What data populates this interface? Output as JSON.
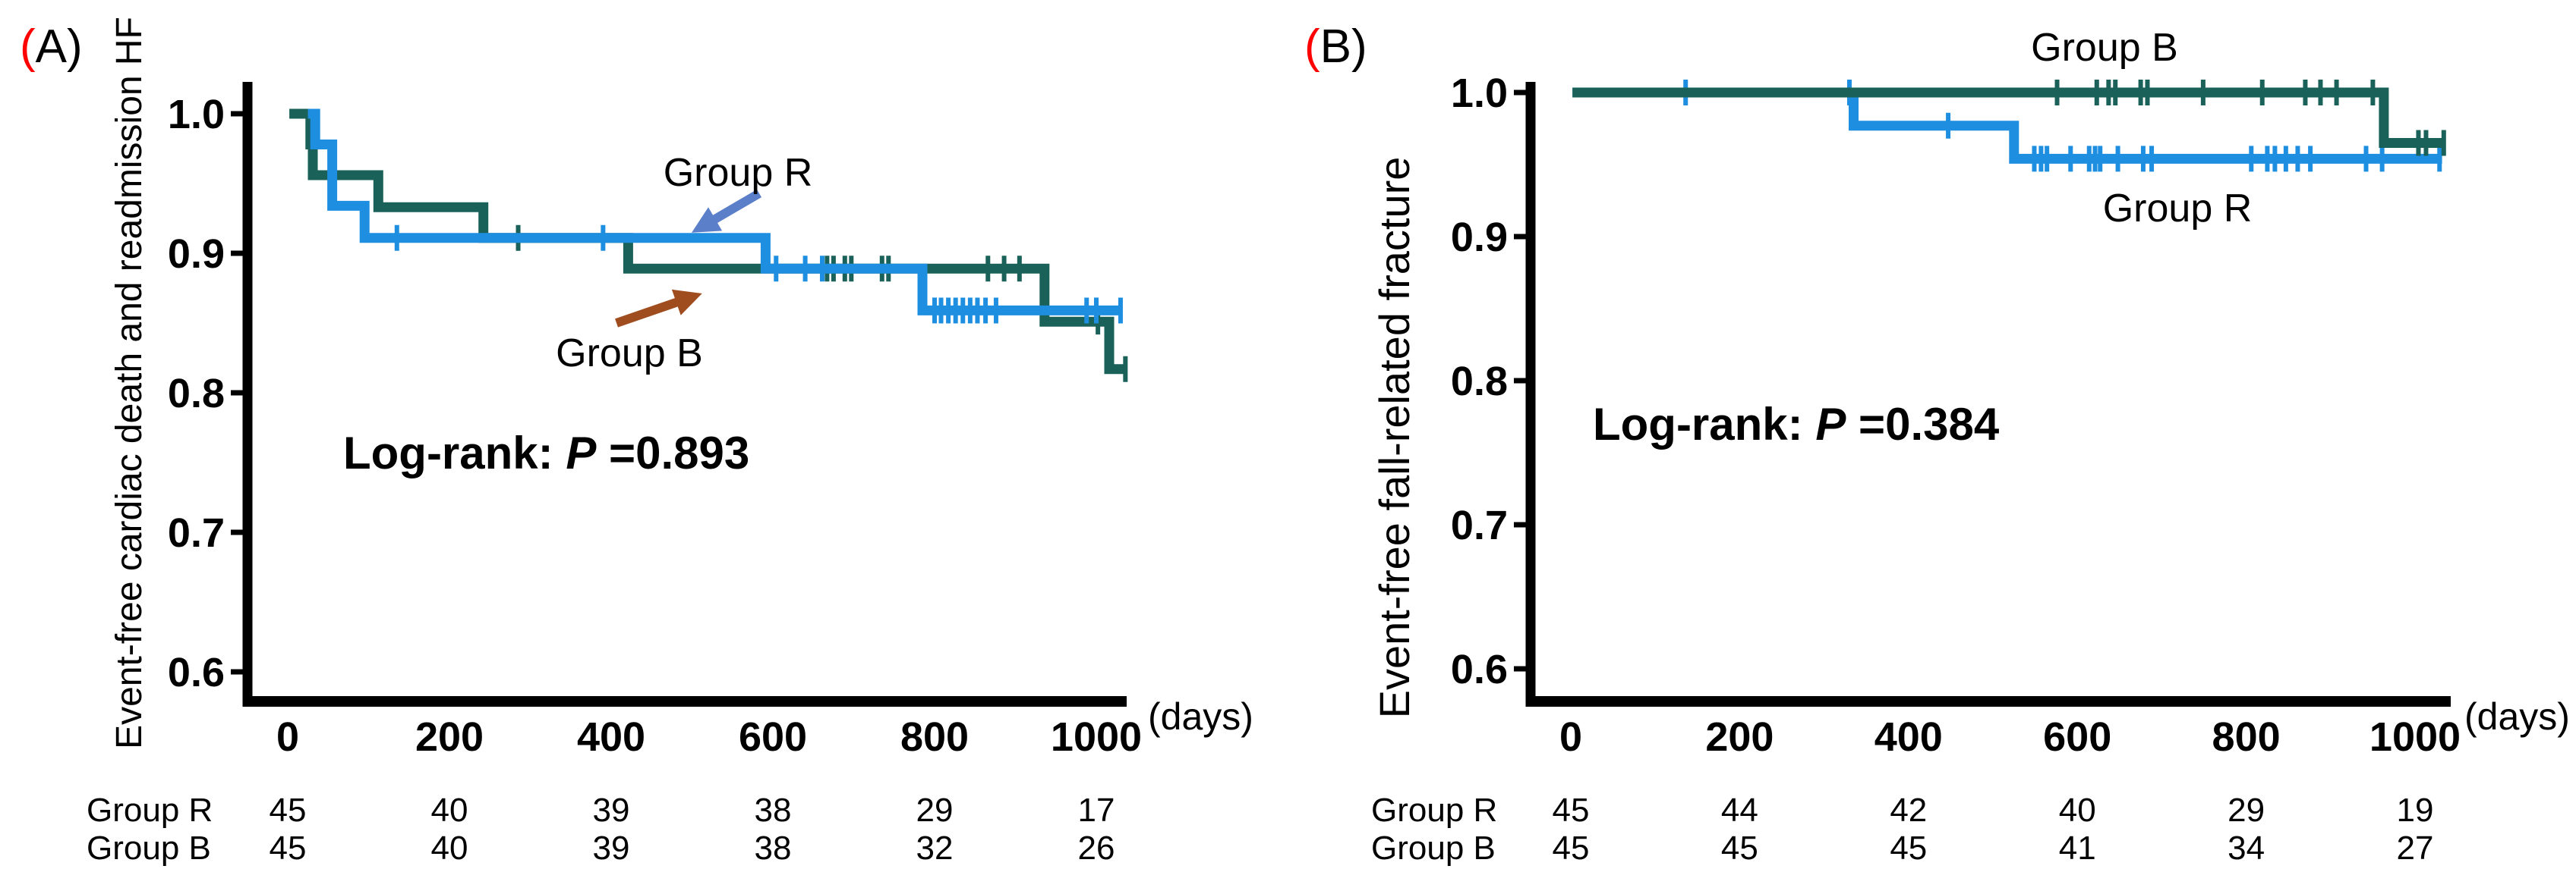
{
  "figure": {
    "background": "#FFFFFF",
    "colors": {
      "group_r": "#1E8FE0",
      "group_b": "#1A6159",
      "arrow_r": "#5C7FC9",
      "arrow_b": "#9F4D1E",
      "accent_red": "#FF0000",
      "axis": "#000000",
      "text": "#000000"
    }
  },
  "chart_data": [
    {
      "type": "line",
      "subtype": "kaplan-meier-step",
      "panel_label": {
        "open": "(",
        "rest": "A)"
      },
      "title": "",
      "ylabel": "Event-free cardiac death and readmission HF",
      "xlabel": "",
      "x_unit_label": "(days)",
      "stats": {
        "prefix": "Log-rank: ",
        "p_symbol": "P",
        "p_value": " =0.893"
      },
      "xlim": [
        0,
        1050
      ],
      "ylim": [
        0.6,
        1.0
      ],
      "grid": false,
      "legend_position": "annotated-on-plot",
      "y_ticks": [
        "1.0",
        "0.9",
        "0.8",
        "0.7",
        "0.6"
      ],
      "x_ticks": [
        "0",
        "200",
        "400",
        "600",
        "800",
        "1000"
      ],
      "series": [
        {
          "name": "Group R",
          "annotation": "Group R",
          "color_key": "group_r",
          "steps": [
            [
              25,
              1.0
            ],
            [
              34,
              0.978
            ],
            [
              55,
              0.934
            ],
            [
              95,
              0.911
            ],
            [
              591,
              0.889
            ],
            [
              785,
              0.859
            ]
          ],
          "end_day": 1032,
          "censor_marks": [
            [
              135,
              0.911
            ],
            [
              390,
              0.911
            ],
            [
              604,
              0.889
            ],
            [
              640,
              0.889
            ],
            [
              661,
              0.889
            ],
            [
              800,
              0.859
            ],
            [
              808,
              0.859
            ],
            [
              817,
              0.859
            ],
            [
              826,
              0.859
            ],
            [
              835,
              0.859
            ],
            [
              844,
              0.859
            ],
            [
              853,
              0.859
            ],
            [
              863,
              0.859
            ],
            [
              876,
              0.859
            ],
            [
              988,
              0.859
            ],
            [
              1000,
              0.859
            ],
            [
              1030,
              0.859
            ]
          ]
        },
        {
          "name": "Group B",
          "annotation": "Group B",
          "color_key": "group_b",
          "steps": [
            [
              2,
              1.0
            ],
            [
              28,
              0.978
            ],
            [
              31,
              0.956
            ],
            [
              112,
              0.933
            ],
            [
              242,
              0.911
            ],
            [
              421,
              0.889
            ],
            [
              936,
              0.851
            ],
            [
              1016,
              0.817
            ]
          ],
          "end_day": 1038,
          "censor_marks": [
            [
              285,
              0.911
            ],
            [
              667,
              0.889
            ],
            [
              675,
              0.889
            ],
            [
              689,
              0.889
            ],
            [
              697,
              0.889
            ],
            [
              735,
              0.889
            ],
            [
              743,
              0.889
            ],
            [
              866,
              0.889
            ],
            [
              886,
              0.889
            ],
            [
              905,
              0.889
            ],
            [
              1002,
              0.851
            ],
            [
              1036,
              0.817
            ]
          ]
        }
      ],
      "risk_table": {
        "at_days": [
          "0",
          "200",
          "400",
          "600",
          "800",
          "1000"
        ],
        "rows": [
          {
            "label": "Group R",
            "counts": [
              "45",
              "40",
              "39",
              "38",
              "29",
              "17"
            ]
          },
          {
            "label": "Group B",
            "counts": [
              "45",
              "40",
              "39",
              "38",
              "32",
              "26"
            ]
          }
        ]
      }
    },
    {
      "type": "line",
      "subtype": "kaplan-meier-step",
      "panel_label": {
        "open": "(",
        "rest": "B)"
      },
      "title": "",
      "ylabel": "Event-free fall-related fracture",
      "xlabel": "",
      "x_unit_label": "(days)",
      "stats": {
        "prefix": "Log-rank: ",
        "p_symbol": "P",
        "p_value": " =0.384"
      },
      "xlim": [
        0,
        1050
      ],
      "ylim": [
        0.6,
        1.0
      ],
      "grid": false,
      "legend_position": "annotated-on-plot",
      "y_ticks": [
        "1.0",
        "0.9",
        "0.8",
        "0.7",
        "0.6"
      ],
      "x_ticks": [
        "0",
        "200",
        "400",
        "600",
        "800",
        "1000"
      ],
      "series": [
        {
          "name": "Group R",
          "annotation": "Group R",
          "color_key": "group_r",
          "steps": [
            [
              2,
              1.0
            ],
            [
              335,
              0.977
            ],
            [
              525,
              0.954
            ]
          ],
          "end_day": 1032,
          "censor_marks": [
            [
              136,
              1.0
            ],
            [
              330,
              1.0
            ],
            [
              447,
              0.977
            ],
            [
              549,
              0.954
            ],
            [
              557,
              0.954
            ],
            [
              564,
              0.954
            ],
            [
              592,
              0.954
            ],
            [
              614,
              0.954
            ],
            [
              621,
              0.954
            ],
            [
              627,
              0.954
            ],
            [
              648,
              0.954
            ],
            [
              678,
              0.954
            ],
            [
              688,
              0.954
            ],
            [
              806,
              0.954
            ],
            [
              825,
              0.954
            ],
            [
              834,
              0.954
            ],
            [
              847,
              0.954
            ],
            [
              861,
              0.954
            ],
            [
              876,
              0.954
            ],
            [
              942,
              0.954
            ],
            [
              961,
              0.954
            ],
            [
              1029,
              0.954
            ]
          ]
        },
        {
          "name": "Group B",
          "annotation": "Group B",
          "color_key": "group_b",
          "steps": [
            [
              2,
              1.0
            ],
            [
              963,
              0.965
            ]
          ],
          "end_day": 1036,
          "censor_marks": [
            [
              576,
              1.0
            ],
            [
              623,
              1.0
            ],
            [
              637,
              1.0
            ],
            [
              645,
              1.0
            ],
            [
              675,
              1.0
            ],
            [
              683,
              1.0
            ],
            [
              749,
              1.0
            ],
            [
              819,
              1.0
            ],
            [
              870,
              1.0
            ],
            [
              888,
              1.0
            ],
            [
              907,
              1.0
            ],
            [
              950,
              1.0
            ],
            [
              1004,
              0.965
            ],
            [
              1013,
              0.965
            ],
            [
              1034,
              0.965
            ]
          ]
        }
      ],
      "risk_table": {
        "at_days": [
          "0",
          "200",
          "400",
          "600",
          "800",
          "1000"
        ],
        "rows": [
          {
            "label": "Group R",
            "counts": [
              "45",
              "44",
              "42",
              "40",
              "29",
              "19"
            ]
          },
          {
            "label": "Group B",
            "counts": [
              "45",
              "45",
              "45",
              "41",
              "34",
              "27"
            ]
          }
        ]
      }
    }
  ]
}
